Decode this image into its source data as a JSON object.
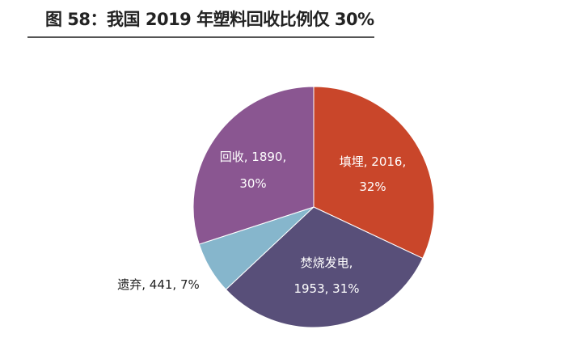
{
  "chart_data": {
    "type": "pie",
    "title": "图 58：我国 2019 年塑料回收比例仅 30%",
    "start": "top",
    "direction": "clockwise",
    "slices": [
      {
        "name": "填埋",
        "value": 2016,
        "percent": 32,
        "color": "#C9462A",
        "label": [
          "填埋, 2016,",
          "32%"
        ],
        "label_color": "#ffffff"
      },
      {
        "name": "焚烧发电",
        "value": 1953,
        "percent": 31,
        "color": "#584F79",
        "label": [
          "焚烧发电,",
          "1953, 31%"
        ],
        "label_color": "#ffffff"
      },
      {
        "name": "遗弃",
        "value": 441,
        "percent": 7,
        "color": "#86B6CC",
        "label": [
          "遗弃, 441, 7%"
        ],
        "label_color": "#222222"
      },
      {
        "name": "回收",
        "value": 1890,
        "percent": 30,
        "color": "#8A5691",
        "label": [
          "回收, 1890,",
          "30%"
        ],
        "label_color": "#ffffff"
      }
    ]
  }
}
